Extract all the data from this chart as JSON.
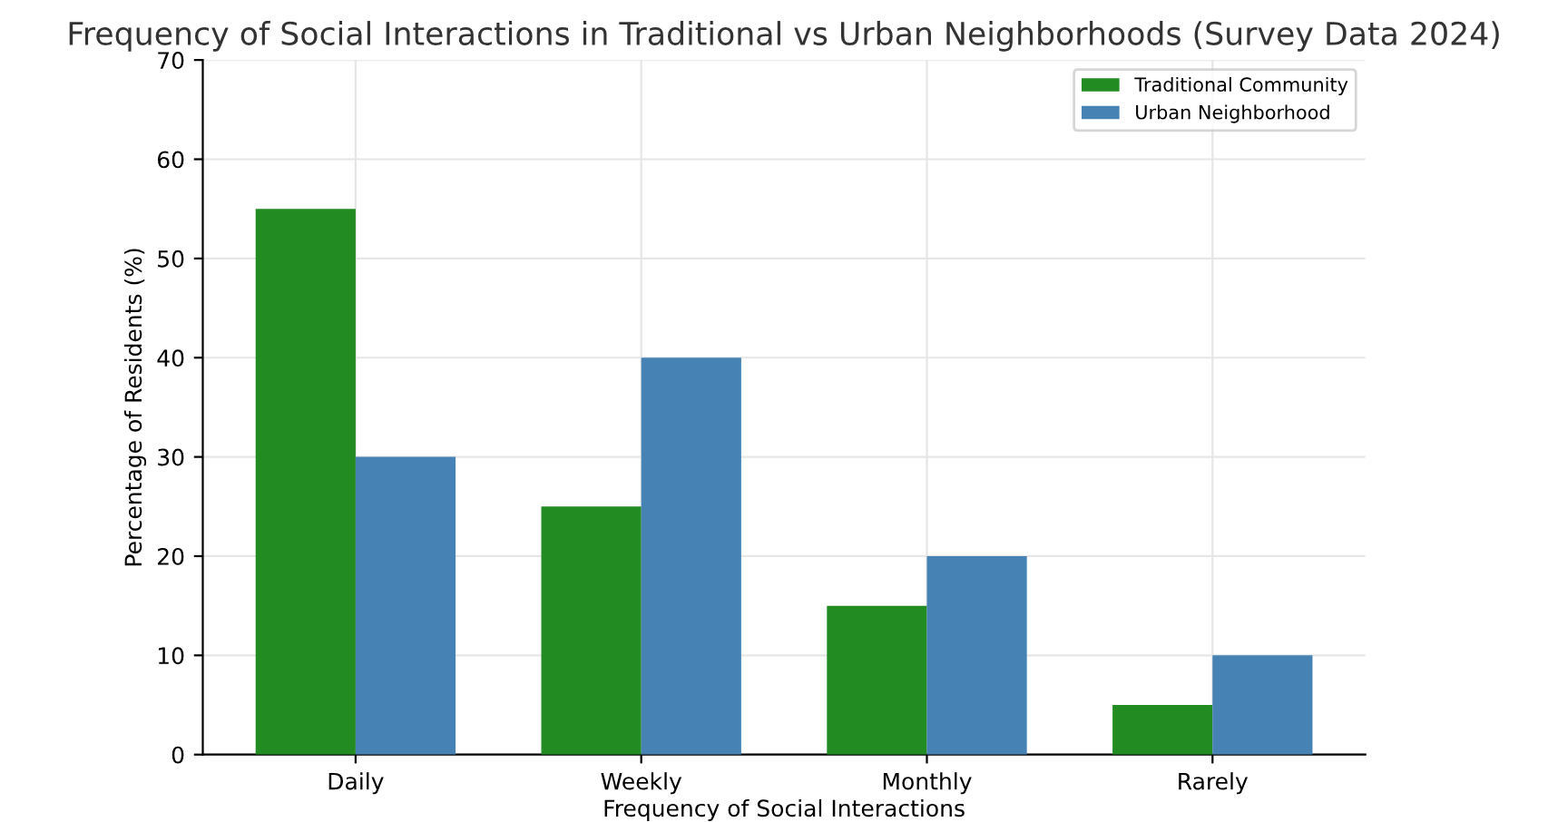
{
  "chart_data": {
    "type": "bar",
    "title": "Frequency of Social Interactions in Traditional vs Urban Neighborhoods (Survey Data 2024)",
    "xlabel": "Frequency of Social Interactions",
    "ylabel": "Percentage of Residents (%)",
    "categories": [
      "Daily",
      "Weekly",
      "Monthly",
      "Rarely"
    ],
    "series": [
      {
        "name": "Traditional Community",
        "color": "#228b22",
        "values": [
          55,
          25,
          15,
          5
        ]
      },
      {
        "name": "Urban Neighborhood",
        "color": "#4682b4",
        "values": [
          30,
          40,
          20,
          10
        ]
      }
    ],
    "ylim": [
      0,
      70
    ],
    "yticks": [
      0,
      10,
      20,
      30,
      40,
      50,
      60,
      70
    ],
    "grid": true,
    "legend": "top right"
  }
}
